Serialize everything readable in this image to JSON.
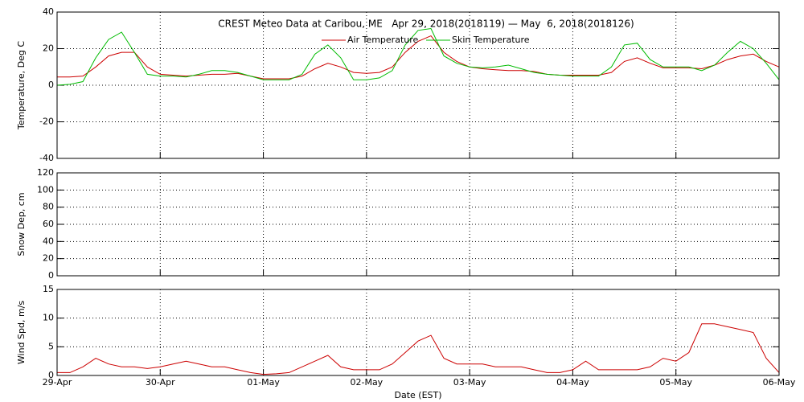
{
  "chart_data": [
    {
      "type": "line",
      "title": "CREST Meteo Data at Caribou, ME   Apr 29, 2018(2018119) — May  6, 2018(2018126)",
      "y_label": "Temperature, Deg C",
      "xlim": [
        0,
        7
      ],
      "xticks": [
        0,
        1,
        2,
        3,
        4,
        5,
        6,
        7
      ],
      "ylim": [
        -40,
        40
      ],
      "yticks": [
        -40,
        -20,
        0,
        20,
        40
      ],
      "grid": true,
      "x": [
        0,
        0.125,
        0.25,
        0.375,
        0.5,
        0.625,
        0.75,
        0.875,
        1,
        1.125,
        1.25,
        1.375,
        1.5,
        1.625,
        1.75,
        1.875,
        2,
        2.125,
        2.25,
        2.375,
        2.5,
        2.625,
        2.75,
        2.875,
        3,
        3.125,
        3.25,
        3.375,
        3.5,
        3.625,
        3.75,
        3.875,
        4,
        4.125,
        4.25,
        4.375,
        4.5,
        4.625,
        4.75,
        4.875,
        5,
        5.125,
        5.25,
        5.375,
        5.5,
        5.625,
        5.75,
        5.875,
        6,
        6.125,
        6.25,
        6.375,
        6.5,
        6.625,
        6.75,
        6.875,
        7
      ],
      "series": [
        {
          "name": "Air Temperature",
          "color": "#cc0000",
          "values": [
            4.5,
            4.5,
            5,
            10,
            16,
            18,
            18,
            10,
            6,
            5.5,
            5,
            5.5,
            6,
            6,
            6.5,
            5,
            3.5,
            3.5,
            3.5,
            5,
            9,
            12,
            10,
            7,
            6.5,
            7,
            10,
            18,
            24,
            27,
            18,
            13,
            10,
            9,
            8.5,
            8,
            8,
            7.5,
            6,
            5.5,
            5.5,
            5.5,
            5.5,
            7,
            13,
            15,
            12,
            9.5,
            9.5,
            9.5,
            9,
            11,
            14,
            16,
            17,
            13,
            10
          ]
        },
        {
          "name": "Skin Temperature",
          "color": "#00bb00",
          "values": [
            0,
            0.5,
            2,
            15,
            25,
            29,
            18,
            6,
            5,
            5,
            4.5,
            6,
            8,
            8,
            7,
            5,
            3,
            3,
            3,
            6,
            17,
            22,
            15,
            3,
            3,
            4,
            8,
            22,
            30,
            31,
            16,
            12,
            10,
            9.5,
            10,
            11,
            9,
            7,
            6,
            5.5,
            5,
            5,
            5,
            10,
            22,
            23,
            14,
            10,
            10,
            10,
            8,
            11,
            18,
            24,
            20,
            12,
            3
          ]
        }
      ]
    },
    {
      "type": "line",
      "y_label": "Snow Dep, cm",
      "xlim": [
        0,
        7
      ],
      "xticks": [
        0,
        1,
        2,
        3,
        4,
        5,
        6,
        7
      ],
      "ylim": [
        0,
        120
      ],
      "yticks": [
        0,
        20,
        40,
        60,
        80,
        100,
        120
      ],
      "grid": true
    },
    {
      "type": "line",
      "y_label": "Wind Spd, m/s",
      "x_label": "Date (EST)",
      "xlim": [
        0,
        7
      ],
      "xticks": [
        {
          "value": 0,
          "label": "29-Apr"
        },
        {
          "value": 1,
          "label": "30-Apr"
        },
        {
          "value": 2,
          "label": "01-May"
        },
        {
          "value": 3,
          "label": "02-May"
        },
        {
          "value": 4,
          "label": "03-May"
        },
        {
          "value": 5,
          "label": "04-May"
        },
        {
          "value": 6,
          "label": "05-May"
        },
        {
          "value": 7,
          "label": "06-May"
        }
      ],
      "ylim": [
        0,
        15
      ],
      "yticks": [
        0,
        5,
        10,
        15
      ],
      "grid": true,
      "x": [
        0,
        0.125,
        0.25,
        0.375,
        0.5,
        0.625,
        0.75,
        0.875,
        1,
        1.125,
        1.25,
        1.375,
        1.5,
        1.625,
        1.75,
        1.875,
        2,
        2.125,
        2.25,
        2.375,
        2.5,
        2.625,
        2.75,
        2.875,
        3,
        3.125,
        3.25,
        3.375,
        3.5,
        3.625,
        3.75,
        3.875,
        4,
        4.125,
        4.25,
        4.375,
        4.5,
        4.625,
        4.75,
        4.875,
        5,
        5.125,
        5.25,
        5.375,
        5.5,
        5.625,
        5.75,
        5.875,
        6,
        6.125,
        6.25,
        6.375,
        6.5,
        6.625,
        6.75,
        6.875,
        7
      ],
      "series": [
        {
          "color": "#cc0000",
          "values": [
            0.5,
            0.5,
            1.5,
            3,
            2,
            1.5,
            1.5,
            1.2,
            1.5,
            2,
            2.5,
            2,
            1.5,
            1.5,
            1,
            0.5,
            0.2,
            0.3,
            0.5,
            1.5,
            2.5,
            3.5,
            1.5,
            1,
            1,
            1,
            2,
            4,
            6,
            7,
            3,
            2,
            2,
            2,
            1.5,
            1.5,
            1.5,
            1,
            0.5,
            0.5,
            1,
            2.5,
            1,
            1,
            1,
            1,
            1.5,
            3,
            2.5,
            4,
            9,
            9,
            8.5,
            8,
            7.5,
            3,
            0.5
          ]
        }
      ]
    }
  ]
}
